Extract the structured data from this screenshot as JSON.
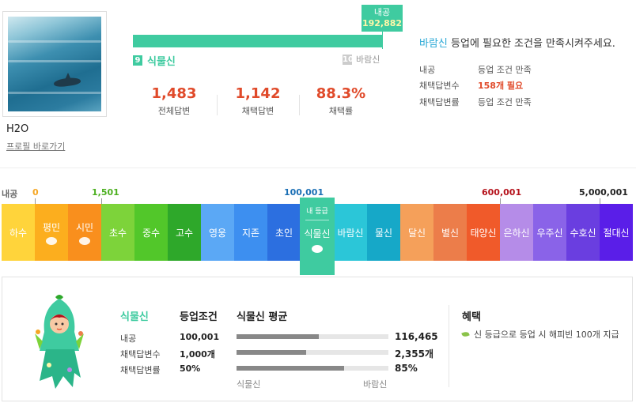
{
  "profile": {
    "username": "H2O",
    "profile_link": "프로필 바로가기"
  },
  "progress": {
    "tooltip_label": "내공",
    "tooltip_value": "192,882",
    "current_level_num": "9",
    "current_level_name": "식물신",
    "next_level_num": "10",
    "next_level_name": "바람신",
    "fill_fraction": 1.0
  },
  "stats": [
    {
      "value": "1,483",
      "label": "전체답변"
    },
    {
      "value": "1,142",
      "label": "채택답변"
    },
    {
      "value": "88.3%",
      "label": "채택률"
    }
  ],
  "conditions": {
    "title_highlight": "바람신",
    "title_rest": " 등업에 필요한 조건을 만족시켜주세요.",
    "rows": [
      {
        "key": "내공",
        "value": "등업 조건 만족",
        "red": false
      },
      {
        "key": "채택답변수",
        "value": "158개 필요",
        "red": true
      },
      {
        "key": "채택답변률",
        "value": "등업 조건 만족",
        "red": false
      }
    ]
  },
  "thresholds": [
    {
      "label": "내공",
      "color": "#666666"
    },
    {
      "label": "0",
      "color": "#f5a623"
    },
    {
      "label": "1,501",
      "color": "#4caf1f"
    },
    {
      "label": "100,001",
      "color": "#1a6fb5"
    },
    {
      "label": "600,001",
      "color": "#b5121b"
    },
    {
      "label": "5,000,001",
      "color": "#222222"
    }
  ],
  "grades": [
    {
      "name": "하수",
      "color": "#ffd43b",
      "badge": false
    },
    {
      "name": "평민",
      "color": "#fcae1e",
      "badge": true
    },
    {
      "name": "시민",
      "color": "#f98f1d",
      "badge": true
    },
    {
      "name": "초수",
      "color": "#7dd33a",
      "badge": false
    },
    {
      "name": "중수",
      "color": "#52c72a",
      "badge": false
    },
    {
      "name": "고수",
      "color": "#2ea82a",
      "badge": false
    },
    {
      "name": "영웅",
      "color": "#5ba8f5",
      "badge": false
    },
    {
      "name": "지존",
      "color": "#3d8ff0",
      "badge": false
    },
    {
      "name": "초인",
      "color": "#2c6fe0",
      "badge": false
    },
    {
      "name": "식물신",
      "color": "#3fcba0",
      "badge": true
    },
    {
      "name": "바람신",
      "color": "#2bc6d8",
      "badge": false
    },
    {
      "name": "물신",
      "color": "#16a8c8",
      "badge": false
    },
    {
      "name": "달신",
      "color": "#f5a05a",
      "badge": false
    },
    {
      "name": "별신",
      "color": "#ec7d4a",
      "badge": false
    },
    {
      "name": "태양신",
      "color": "#f05a2a",
      "badge": false
    },
    {
      "name": "은하신",
      "color": "#b58ce8",
      "badge": false
    },
    {
      "name": "우주신",
      "color": "#8a63e8",
      "badge": false
    },
    {
      "name": "수호신",
      "color": "#6a3ee0",
      "badge": false
    },
    {
      "name": "절대신",
      "color": "#5a1ee8",
      "badge": false
    }
  ],
  "current_grade": {
    "mine_label": "내 등급",
    "name": "식물신"
  },
  "detail": {
    "grade_name": "식물신",
    "cond_header": "등업조건",
    "avg_header": "식물신 평균",
    "rows": [
      {
        "key": "내공",
        "cond": "100,001",
        "avg": "116,465",
        "fill": 0.54
      },
      {
        "key": "채택답변수",
        "cond": "1,000개",
        "avg": "2,355개",
        "fill": 0.46
      },
      {
        "key": "채택답변률",
        "cond": "50%",
        "avg": "85%",
        "fill": 0.71
      }
    ],
    "axis_left": "식물신",
    "axis_right": "바람신",
    "benefit_title": "혜택",
    "benefit_text": "신 등급으로 등업 시 해피빈 100개 지급"
  }
}
